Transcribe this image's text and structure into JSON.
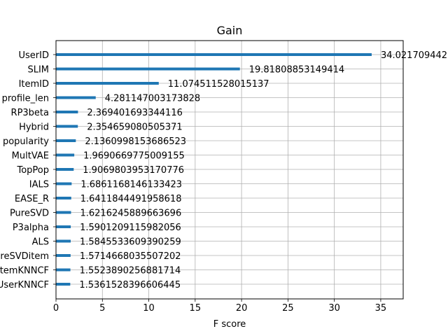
{
  "chart_data": {
    "type": "bar",
    "orientation": "horizontal",
    "title": "Gain",
    "xlabel": "F score",
    "ylabel": "",
    "xlim": [
      0,
      37.42
    ],
    "xticks": [
      0,
      5,
      10,
      15,
      20,
      25,
      30,
      35
    ],
    "grid": true,
    "bar_color": "#1f77b4",
    "categories": [
      "UserID",
      "SLIM",
      "ItemID",
      "profile_len",
      "RP3beta",
      "Hybrid",
      "popularity",
      "MultVAE",
      "TopPop",
      "IALS",
      "EASE_R",
      "PureSVD",
      "P3alpha",
      "ALS",
      "PureSVDitem",
      "ItemKNNCF",
      "UserKNNCF"
    ],
    "values": [
      34.021709442,
      19.81808853149414,
      11.074511528015137,
      4.281147003173828,
      2.369401693344116,
      2.354659080505371,
      2.1360998153686523,
      1.9690669775009155,
      1.9069803953170776,
      1.6861168146133423,
      1.6411844491958618,
      1.6216245889663696,
      1.5901209115982056,
      1.5845533609390259,
      1.5714668035507202,
      1.5523890256881714,
      1.5361528396606445
    ],
    "value_labels": [
      "34.021709442",
      "19.81808853149414",
      "11.074511528015137",
      "4.281147003173828",
      "2.369401693344116",
      "2.354659080505371",
      "2.1360998153686523",
      "1.9690669775009155",
      "1.9069803953170776",
      "1.6861168146133423",
      "1.6411844491958618",
      "1.6216245889663696",
      "1.5901209115982056",
      "1.5845533609390259",
      "1.5714668035507202",
      "1.5523890256881714",
      "1.5361528396606445"
    ]
  }
}
